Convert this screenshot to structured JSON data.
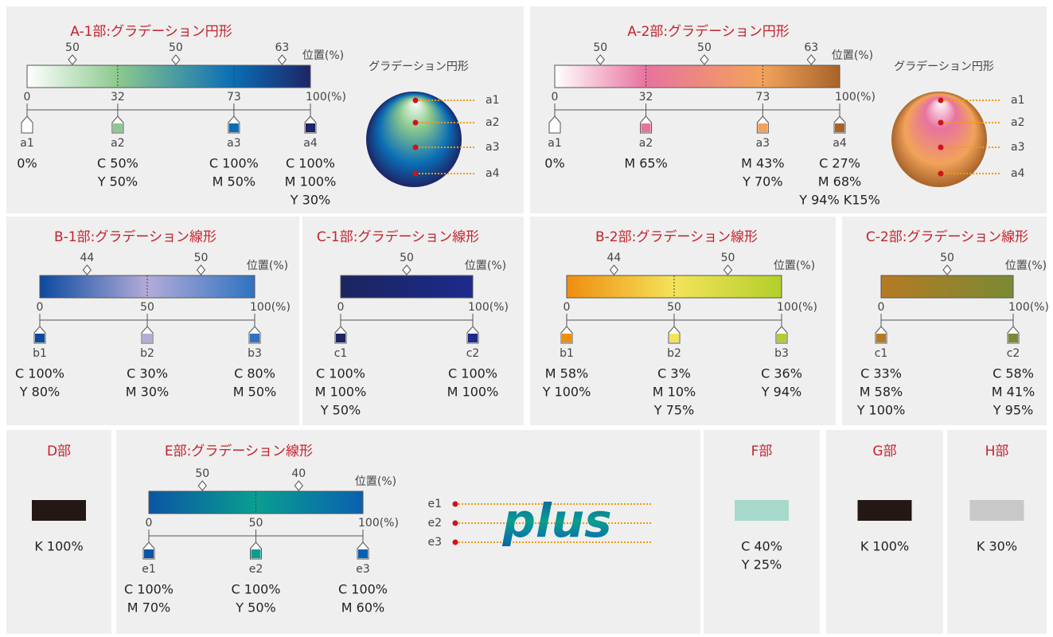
{
  "sections": [
    {
      "title": "A-1部:グラデーション円形",
      "kind": "radial",
      "position_label": "位置(%)",
      "midpoints": [
        "50",
        "50",
        "63"
      ],
      "scale": [
        "0",
        "32",
        "73",
        "100(%)"
      ],
      "stops": [
        {
          "name": "a1",
          "color": "#ffffff",
          "lines": [
            "0%"
          ]
        },
        {
          "name": "a2",
          "color": "#8cc98e",
          "lines": [
            "C 50%",
            "Y 50%"
          ]
        },
        {
          "name": "a3",
          "color": "#0a6db5",
          "lines": [
            "C 100%",
            "M 50%"
          ]
        },
        {
          "name": "a4",
          "color": "#1d2566",
          "lines": [
            "C 100%",
            "M 100%",
            "Y 30%"
          ]
        }
      ],
      "sphere": {
        "title": "グラデーション円形",
        "labels": [
          "a1",
          "a2",
          "a3",
          "a4"
        ]
      }
    },
    {
      "title": "A-2部:グラデーション円形",
      "kind": "radial",
      "position_label": "位置(%)",
      "midpoints": [
        "50",
        "50",
        "63"
      ],
      "scale": [
        "0",
        "32",
        "73",
        "100(%)"
      ],
      "stops": [
        {
          "name": "a1",
          "color": "#ffffff",
          "lines": [
            "0%"
          ]
        },
        {
          "name": "a2",
          "color": "#e8739f",
          "lines": [
            "M 65%"
          ]
        },
        {
          "name": "a3",
          "color": "#f2a35a",
          "lines": [
            "M 43%",
            "Y  70%"
          ]
        },
        {
          "name": "a4",
          "color": "#a8632a",
          "lines": [
            "C 27%",
            "M 68%",
            "Y 94%  K15%"
          ]
        }
      ],
      "sphere": {
        "title": "グラデーション円形",
        "labels": [
          "a1",
          "a2",
          "a3",
          "a4"
        ]
      }
    },
    {
      "title": "B-1部:グラデーション線形",
      "kind": "linear",
      "position_label": "位置(%)",
      "midpoints": [
        "44",
        "50"
      ],
      "scale": [
        "0",
        "50",
        "100(%)"
      ],
      "stops": [
        {
          "name": "b1",
          "color": "#0b4aa0",
          "lines": [
            "C 100%",
            "Y 80%"
          ]
        },
        {
          "name": "b2",
          "color": "#b3abd8",
          "lines": [
            "C 30%",
            "M 30%"
          ]
        },
        {
          "name": "b3",
          "color": "#2f72c0",
          "lines": [
            "C 80%",
            "M 50%"
          ]
        }
      ]
    },
    {
      "title": "C-1部:グラデーション線形",
      "kind": "linear",
      "position_label": "位置(%)",
      "midpoints": [
        "50"
      ],
      "scale": [
        "0",
        "100(%)"
      ],
      "stops": [
        {
          "name": "c1",
          "color": "#1b2560",
          "lines": [
            "C 100%",
            "M 100%",
            "Y 50%"
          ]
        },
        {
          "name": "c2",
          "color": "#1d2a8c",
          "lines": [
            "C 100%",
            "M 100%"
          ]
        }
      ]
    },
    {
      "title": "B-2部:グラデーション線形",
      "kind": "linear",
      "position_label": "位置(%)",
      "midpoints": [
        "44",
        "50"
      ],
      "scale": [
        "0",
        "50",
        "100(%)"
      ],
      "stops": [
        {
          "name": "b1",
          "color": "#ef8d0f",
          "lines": [
            "M 58%",
            "Y 100%"
          ]
        },
        {
          "name": "b2",
          "color": "#f4e35a",
          "lines": [
            "C  3%",
            "M 10%",
            "Y  75%"
          ]
        },
        {
          "name": "b3",
          "color": "#b3cf2a",
          "lines": [
            "C 36%",
            "Y 94%"
          ]
        }
      ]
    },
    {
      "title": "C-2部:グラデーション線形",
      "kind": "linear",
      "position_label": "位置(%)",
      "midpoints": [
        "50"
      ],
      "scale": [
        "0",
        "100(%)"
      ],
      "stops": [
        {
          "name": "c1",
          "color": "#b57a24",
          "lines": [
            "C 33%",
            "M 58%",
            "Y 100%"
          ]
        },
        {
          "name": "c2",
          "color": "#7a8a34",
          "lines": [
            "C 58%",
            "M 41%",
            "Y  95%"
          ]
        }
      ]
    },
    {
      "title": "D部",
      "kind": "solid",
      "color": "#231815",
      "lines": [
        "K 100%"
      ]
    },
    {
      "title": "E部:グラデーション線形",
      "kind": "linear",
      "position_label": "位置(%)",
      "midpoints": [
        "50",
        "40"
      ],
      "scale": [
        "0",
        "50",
        "100(%)"
      ],
      "stops": [
        {
          "name": "e1",
          "color": "#0b55a3",
          "lines": [
            "C 100%",
            "M 70%"
          ]
        },
        {
          "name": "e2",
          "color": "#0a9e90",
          "lines": [
            "C 100%",
            "Y 50%"
          ]
        },
        {
          "name": "e3",
          "color": "#0a60b0",
          "lines": [
            "C 100%",
            "M 60%"
          ]
        }
      ],
      "logo": {
        "text": "plus",
        "labels": [
          "e1",
          "e2",
          "e3"
        ]
      }
    },
    {
      "title": "F部",
      "kind": "solid",
      "color": "#a6d9cc",
      "lines": [
        "C 40%",
        "Y 25%"
      ]
    },
    {
      "title": "G部",
      "kind": "solid",
      "color": "#231815",
      "lines": [
        "K 100%"
      ]
    },
    {
      "title": "H部",
      "kind": "solid",
      "color": "#c8c8c8",
      "lines": [
        "K 30%"
      ]
    }
  ]
}
